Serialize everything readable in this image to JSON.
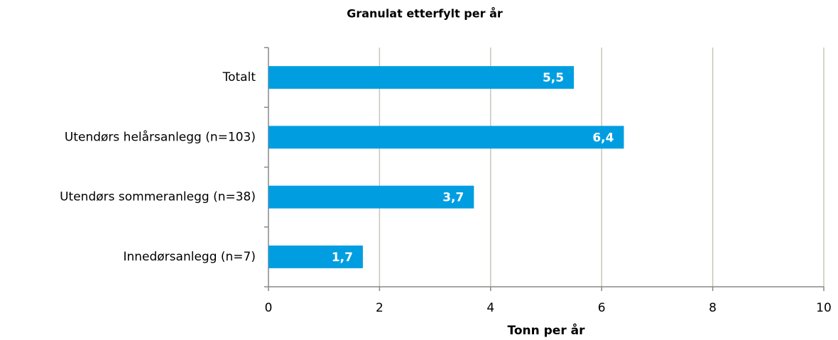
{
  "chart_data": {
    "type": "bar",
    "title": "Granulat etterfylt per år",
    "categories": [
      "Totalt",
      "Utendørs helårsanlegg (n=103)",
      "Utendørs sommeranlegg (n=38)",
      "Innedørsanlegg (n=7)"
    ],
    "values": [
      5.5,
      6.4,
      3.7,
      1.7
    ],
    "value_labels": [
      "5,5",
      "6,4",
      "3,7",
      "1,7"
    ],
    "color": "#009ee0",
    "x_label": "Tonn per år",
    "xlim": [
      0,
      10
    ],
    "xticks": [
      0,
      2,
      4,
      6,
      8,
      10
    ],
    "grid": true
  }
}
